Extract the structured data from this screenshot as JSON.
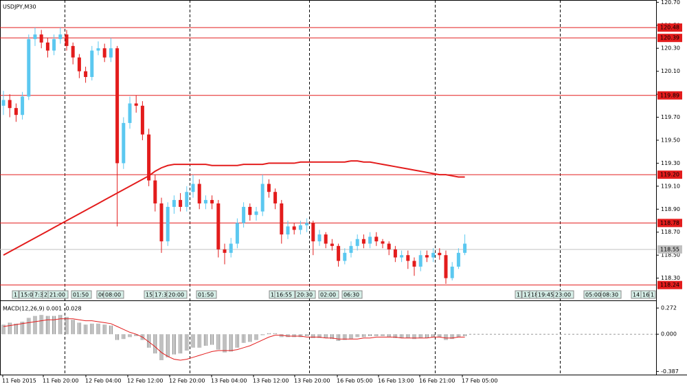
{
  "chart_data": {
    "type": "candlestick",
    "title": "USDJPY,M30",
    "ylim": [
      118.22,
      120.72
    ],
    "yticks": [
      {
        "value": 120.7,
        "label": "120.70"
      },
      {
        "value": 120.5,
        "label": "120.50"
      },
      {
        "value": 120.3,
        "label": "120.30"
      },
      {
        "value": 120.1,
        "label": "120.10"
      },
      {
        "value": 119.9,
        "label": "119.90"
      },
      {
        "value": 119.7,
        "label": "119.70"
      },
      {
        "value": 119.5,
        "label": "119.50"
      },
      {
        "value": 119.3,
        "label": "119.30"
      },
      {
        "value": 119.1,
        "label": "119.10"
      },
      {
        "value": 118.9,
        "label": "118.90"
      },
      {
        "value": 118.7,
        "label": "118.70"
      },
      {
        "value": 118.5,
        "label": "118.50"
      },
      {
        "value": 118.3,
        "label": "118.30"
      }
    ],
    "up_color": "#5bc8f0",
    "down_color": "#e31c1c",
    "open": [
      119.8,
      119.85,
      119.78,
      119.72,
      119.88,
      120.38,
      120.42,
      120.35,
      120.28,
      120.38,
      120.42,
      120.32,
      120.22,
      120.1,
      120.05,
      120.28,
      120.3,
      120.22,
      120.3,
      119.3,
      119.65,
      119.82,
      119.8,
      119.55,
      119.15,
      118.95,
      118.62,
      118.92,
      118.98,
      118.92,
      119.05,
      119.12,
      118.95,
      118.98,
      118.95,
      118.55,
      118.52,
      118.6,
      118.78,
      118.92,
      118.85,
      118.88,
      119.12,
      119.05,
      118.95,
      118.68,
      118.75,
      118.72,
      118.76,
      118.78,
      118.62,
      118.68,
      118.6,
      118.58,
      118.45,
      118.52,
      118.58,
      118.64,
      118.6,
      118.66,
      118.62,
      118.6,
      118.55,
      118.48,
      118.5,
      118.45,
      118.4,
      118.5,
      118.48,
      118.52,
      118.5,
      118.3,
      118.4,
      118.52
    ],
    "high": [
      119.93,
      119.9,
      119.82,
      119.92,
      120.42,
      120.48,
      120.46,
      120.39,
      120.42,
      120.48,
      120.46,
      120.35,
      120.25,
      120.14,
      120.32,
      120.36,
      120.34,
      120.39,
      120.32,
      119.7,
      119.88,
      119.89,
      119.84,
      119.6,
      119.2,
      119.0,
      118.96,
      119.02,
      119.04,
      119.1,
      119.2,
      119.16,
      119.02,
      119.02,
      118.98,
      118.6,
      118.65,
      118.82,
      118.96,
      118.95,
      118.92,
      119.2,
      119.16,
      119.08,
      118.98,
      118.8,
      118.78,
      118.8,
      118.82,
      118.8,
      118.72,
      118.7,
      118.64,
      118.6,
      118.56,
      118.62,
      118.68,
      118.68,
      118.7,
      118.7,
      118.64,
      118.62,
      118.58,
      118.54,
      118.54,
      118.48,
      118.54,
      118.54,
      118.56,
      118.56,
      118.54,
      118.44,
      118.56,
      118.68
    ],
    "low": [
      119.72,
      119.7,
      119.66,
      119.68,
      119.85,
      120.32,
      120.3,
      120.22,
      120.24,
      120.34,
      120.28,
      120.16,
      120.04,
      120.0,
      120.02,
      120.24,
      120.18,
      120.18,
      118.75,
      119.25,
      119.6,
      119.74,
      119.5,
      119.1,
      118.88,
      118.52,
      118.58,
      118.86,
      118.88,
      118.88,
      119.0,
      118.9,
      118.9,
      118.9,
      118.48,
      118.42,
      118.48,
      118.56,
      118.74,
      118.8,
      118.8,
      118.84,
      119.0,
      118.9,
      118.6,
      118.64,
      118.68,
      118.68,
      118.7,
      118.5,
      118.58,
      118.56,
      118.54,
      118.4,
      118.42,
      118.48,
      118.54,
      118.56,
      118.56,
      118.58,
      118.56,
      118.5,
      118.44,
      118.44,
      118.38,
      118.32,
      118.36,
      118.44,
      118.44,
      118.46,
      118.25,
      118.28,
      118.38,
      118.5
    ],
    "close": [
      119.85,
      119.78,
      119.72,
      119.88,
      120.38,
      120.42,
      120.35,
      120.28,
      120.38,
      120.42,
      120.32,
      120.22,
      120.1,
      120.05,
      120.28,
      120.3,
      120.22,
      120.3,
      119.3,
      119.65,
      119.82,
      119.8,
      119.55,
      119.15,
      118.95,
      118.62,
      118.92,
      118.98,
      118.92,
      119.05,
      119.12,
      118.95,
      118.98,
      118.95,
      118.55,
      118.52,
      118.6,
      118.78,
      118.92,
      118.85,
      118.88,
      119.12,
      119.05,
      118.95,
      118.68,
      118.75,
      118.72,
      118.76,
      118.78,
      118.62,
      118.68,
      118.6,
      118.58,
      118.45,
      118.52,
      118.58,
      118.64,
      118.6,
      118.66,
      118.62,
      118.6,
      118.55,
      118.48,
      118.5,
      118.45,
      118.4,
      118.5,
      118.48,
      118.52,
      118.5,
      118.3,
      118.4,
      118.52,
      118.6
    ],
    "ma": {
      "color": "#e31c1c",
      "values": [
        118.5,
        118.53,
        118.56,
        118.59,
        118.62,
        118.65,
        118.68,
        118.71,
        118.74,
        118.77,
        118.8,
        118.83,
        118.86,
        118.89,
        118.92,
        118.95,
        118.98,
        119.01,
        119.04,
        119.07,
        119.1,
        119.13,
        119.16,
        119.19,
        119.23,
        119.26,
        119.28,
        119.29,
        119.29,
        119.29,
        119.29,
        119.29,
        119.29,
        119.28,
        119.28,
        119.28,
        119.28,
        119.28,
        119.29,
        119.29,
        119.29,
        119.29,
        119.3,
        119.3,
        119.3,
        119.3,
        119.3,
        119.31,
        119.31,
        119.31,
        119.31,
        119.31,
        119.31,
        119.31,
        119.31,
        119.32,
        119.32,
        119.31,
        119.31,
        119.3,
        119.29,
        119.28,
        119.27,
        119.26,
        119.25,
        119.24,
        119.23,
        119.22,
        119.21,
        119.2,
        119.2,
        119.19,
        119.18,
        119.18
      ]
    },
    "levels": [
      {
        "value": 120.48,
        "label": "120.48"
      },
      {
        "value": 120.39,
        "label": "120.39"
      },
      {
        "value": 119.89,
        "label": "119.89"
      },
      {
        "value": 119.2,
        "label": "119.20"
      },
      {
        "value": 118.78,
        "label": "118.78"
      },
      {
        "value": 118.24,
        "label": "118.24"
      }
    ],
    "level_color": "#e31c1c",
    "current_price": {
      "value": 118.55,
      "label": "118.55"
    },
    "events": [
      "1",
      "15:00",
      "7:3",
      "2",
      "21:00",
      "01:50",
      "06",
      "08:00",
      "15",
      "17:3",
      "20:00",
      "01:50",
      "1",
      "16:55",
      "20:30",
      "02:00",
      "06:30",
      "1",
      "17",
      "18",
      "19:45",
      "23:00",
      "05:00",
      "08:30",
      "14",
      "16",
      "1"
    ],
    "time_labels": [
      "11 Feb 2015",
      "11 Feb 20:00",
      "12 Feb 04:00",
      "12 Feb 12:00",
      "12 Feb 20:00",
      "13 Feb 04:00",
      "13 Feb 12:00",
      "13 Feb 20:00",
      "16 Feb 05:00",
      "16 Feb 13:00",
      "16 Feb 21:00",
      "17 Feb 05:00"
    ],
    "macd": {
      "title": "MACD(12,26,9) 0.001 -0.028",
      "ylim": [
        -0.42,
        0.33
      ],
      "yticks": [
        {
          "value": 0.272,
          "label": "0.272"
        },
        {
          "value": 0,
          "label": "0.000"
        },
        {
          "value": -0.387,
          "label": "-0.387"
        }
      ],
      "histogram": {
        "color": "#808080",
        "values": [
          0.1,
          0.12,
          0.11,
          0.13,
          0.17,
          0.19,
          0.2,
          0.19,
          0.19,
          0.2,
          0.18,
          0.15,
          0.12,
          0.1,
          0.11,
          0.11,
          0.1,
          0.09,
          -0.06,
          -0.05,
          -0.03,
          -0.02,
          -0.06,
          -0.14,
          -0.2,
          -0.27,
          -0.24,
          -0.21,
          -0.2,
          -0.17,
          -0.14,
          -0.14,
          -0.12,
          -0.11,
          -0.16,
          -0.19,
          -0.18,
          -0.14,
          -0.09,
          -0.08,
          -0.06,
          -0.01,
          0.01,
          0.01,
          -0.03,
          -0.03,
          -0.03,
          -0.03,
          -0.02,
          -0.04,
          -0.04,
          -0.04,
          -0.05,
          -0.07,
          -0.06,
          -0.05,
          -0.03,
          -0.03,
          -0.02,
          -0.02,
          -0.02,
          -0.03,
          -0.04,
          -0.04,
          -0.04,
          -0.05,
          -0.04,
          -0.04,
          -0.03,
          -0.03,
          -0.06,
          -0.05,
          -0.03,
          -0.02
        ]
      },
      "signal": {
        "color": "#e31c1c",
        "values": [
          0.08,
          0.09,
          0.1,
          0.11,
          0.12,
          0.13,
          0.14,
          0.15,
          0.15,
          0.16,
          0.16,
          0.16,
          0.15,
          0.14,
          0.14,
          0.13,
          0.12,
          0.11,
          0.08,
          0.05,
          0.02,
          0.0,
          -0.03,
          -0.08,
          -0.13,
          -0.19,
          -0.23,
          -0.26,
          -0.27,
          -0.26,
          -0.24,
          -0.22,
          -0.2,
          -0.18,
          -0.17,
          -0.17,
          -0.17,
          -0.16,
          -0.14,
          -0.12,
          -0.09,
          -0.06,
          -0.03,
          -0.01,
          -0.01,
          -0.02,
          -0.02,
          -0.02,
          -0.03,
          -0.03,
          -0.03,
          -0.04,
          -0.04,
          -0.05,
          -0.05,
          -0.05,
          -0.05,
          -0.04,
          -0.04,
          -0.03,
          -0.03,
          -0.03,
          -0.03,
          -0.04,
          -0.04,
          -0.04,
          -0.04,
          -0.04,
          -0.03,
          -0.03,
          -0.04,
          -0.04,
          -0.03,
          -0.03
        ]
      }
    }
  }
}
